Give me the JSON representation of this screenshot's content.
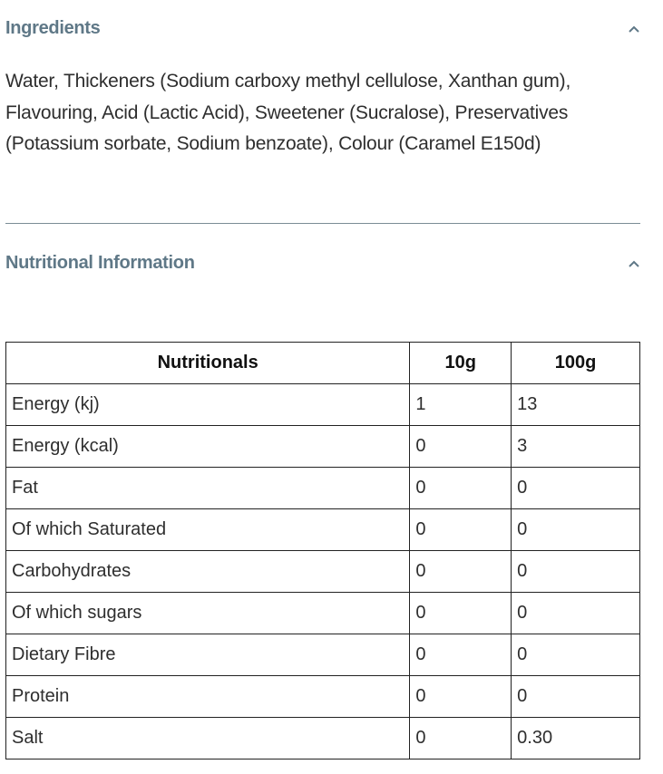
{
  "ingredients": {
    "title": "Ingredients",
    "icon": "chevron-up-icon",
    "text": "Water, Thickeners (Sodium carboxy methyl cellulose, Xanthan gum), Flavouring, Acid (Lactic Acid), Sweetener (Sucralose), Preservatives (Potassium sorbate, Sodium benzoate), Colour (Caramel E150d)"
  },
  "nutrition": {
    "title": "Nutritional Information",
    "icon": "chevron-up-icon",
    "headers": [
      "Nutritionals",
      "10g",
      "100g"
    ],
    "rows": [
      [
        "Energy (kj)",
        "1",
        "13"
      ],
      [
        "Energy (kcal)",
        "0",
        "3"
      ],
      [
        "Fat",
        "0",
        "0"
      ],
      [
        "Of which Saturated",
        "0",
        "0"
      ],
      [
        "Carbohydrates",
        "0",
        "0"
      ],
      [
        "Of which sugars",
        "0",
        "0"
      ],
      [
        "Dietary Fibre",
        "0",
        "0"
      ],
      [
        "Protein",
        "0",
        "0"
      ],
      [
        "Salt",
        "0",
        "0.30"
      ]
    ]
  },
  "colors": {
    "heading": "#5f7887",
    "divider": "#7b8c95"
  }
}
